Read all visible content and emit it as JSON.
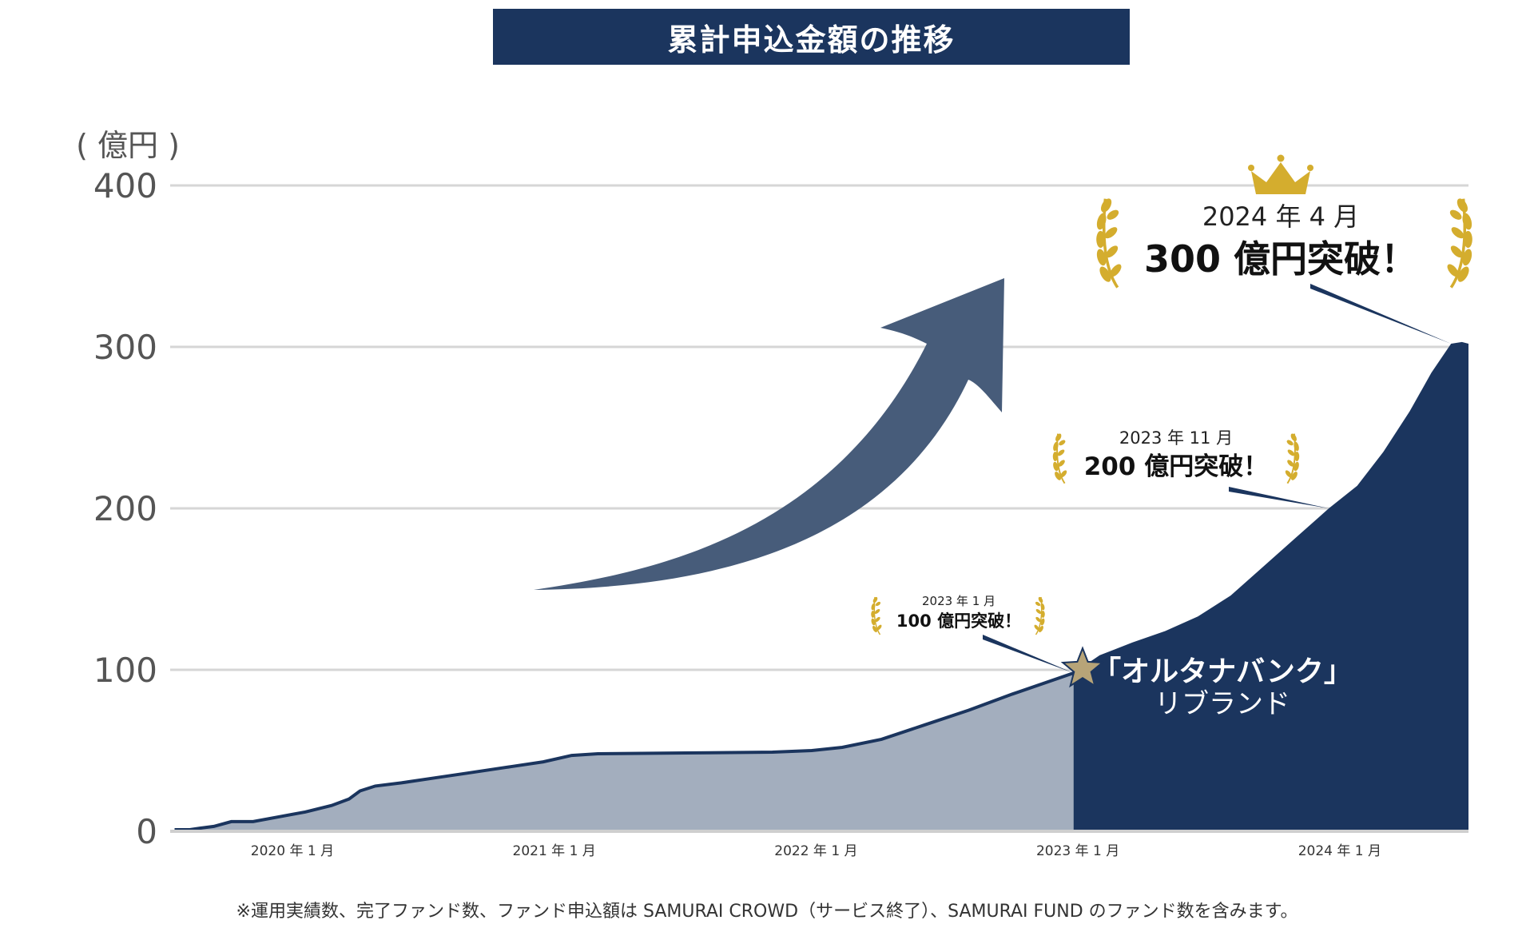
{
  "colors": {
    "navy": "#1b355e",
    "light_area": "#a3aebe",
    "arrow": "#475c7a",
    "gold": "#d4ad2e",
    "grid": "#d6d6d6",
    "star": "#b7a478"
  },
  "chart_data": {
    "type": "area",
    "title": "累計申込金額の推移",
    "ylabel": "( 億円 )",
    "ylim": [
      0,
      400
    ],
    "yticks": [
      {
        "value": 0,
        "label": "0"
      },
      {
        "value": 100,
        "label": "100"
      },
      {
        "value": 200,
        "label": "200"
      },
      {
        "value": 300,
        "label": "300"
      },
      {
        "value": 400,
        "label": "400"
      }
    ],
    "xticks": [
      {
        "t": 0,
        "label": "2020 年 1 月"
      },
      {
        "t": 12,
        "label": "2021 年 1 月"
      },
      {
        "t": 24,
        "label": "2022 年 1 月"
      },
      {
        "t": 36,
        "label": "2023 年 1 月"
      },
      {
        "t": 48,
        "label": "2024 年 1 月"
      }
    ],
    "xlim": [
      -5.6,
      53.9
    ],
    "rebrand_t": 35.8,
    "series": [
      {
        "name": "before_rebrand",
        "points": [
          [
            -5.4,
            1
          ],
          [
            -4.7,
            1
          ],
          [
            -4.2,
            2
          ],
          [
            -3.6,
            3
          ],
          [
            -2.8,
            6
          ],
          [
            -1.8,
            6
          ],
          [
            -0.6,
            9
          ],
          [
            0.6,
            12
          ],
          [
            1.8,
            16
          ],
          [
            2.6,
            20
          ],
          [
            3.1,
            25
          ],
          [
            3.8,
            28
          ],
          [
            5.0,
            30
          ],
          [
            6.5,
            33
          ],
          [
            8.0,
            36
          ],
          [
            10.0,
            40
          ],
          [
            11.5,
            43
          ],
          [
            12.8,
            47
          ],
          [
            14.0,
            48
          ],
          [
            18.0,
            48.5
          ],
          [
            22.0,
            49
          ],
          [
            23.8,
            50
          ],
          [
            25.2,
            52
          ],
          [
            27.0,
            57
          ],
          [
            29.0,
            66
          ],
          [
            31.0,
            75
          ],
          [
            33.0,
            85
          ],
          [
            35.8,
            98
          ]
        ]
      },
      {
        "name": "after_rebrand",
        "points": [
          [
            35.8,
            98
          ],
          [
            37.0,
            109
          ],
          [
            38.5,
            117
          ],
          [
            40.0,
            124
          ],
          [
            41.5,
            133
          ],
          [
            43.0,
            146
          ],
          [
            44.5,
            164
          ],
          [
            46.0,
            182
          ],
          [
            47.5,
            200
          ],
          [
            48.8,
            214
          ],
          [
            50.0,
            235
          ],
          [
            51.2,
            260
          ],
          [
            52.2,
            284
          ],
          [
            53.1,
            302
          ],
          [
            53.6,
            303
          ],
          [
            53.9,
            302
          ]
        ]
      }
    ],
    "milestones": [
      {
        "date": "2023 年 1 月",
        "text": "100 億円突破！",
        "t": 35.8,
        "value": 98
      },
      {
        "date": "2023 年 11 月",
        "text": "200 億円突破！",
        "t": 47.5,
        "value": 200
      },
      {
        "date": "2024 年 4 月",
        "text": "300 億円突破！",
        "t": 53.1,
        "value": 302
      }
    ],
    "rebrand_label": {
      "line1": "「オルタナバンク」",
      "line2": "リブランド"
    }
  },
  "footnote": "※運用実績数、完了ファンド数、ファンド申込額は SAMURAI CROWD（サービス終了）、SAMURAI FUND のファンド数を含みます。"
}
